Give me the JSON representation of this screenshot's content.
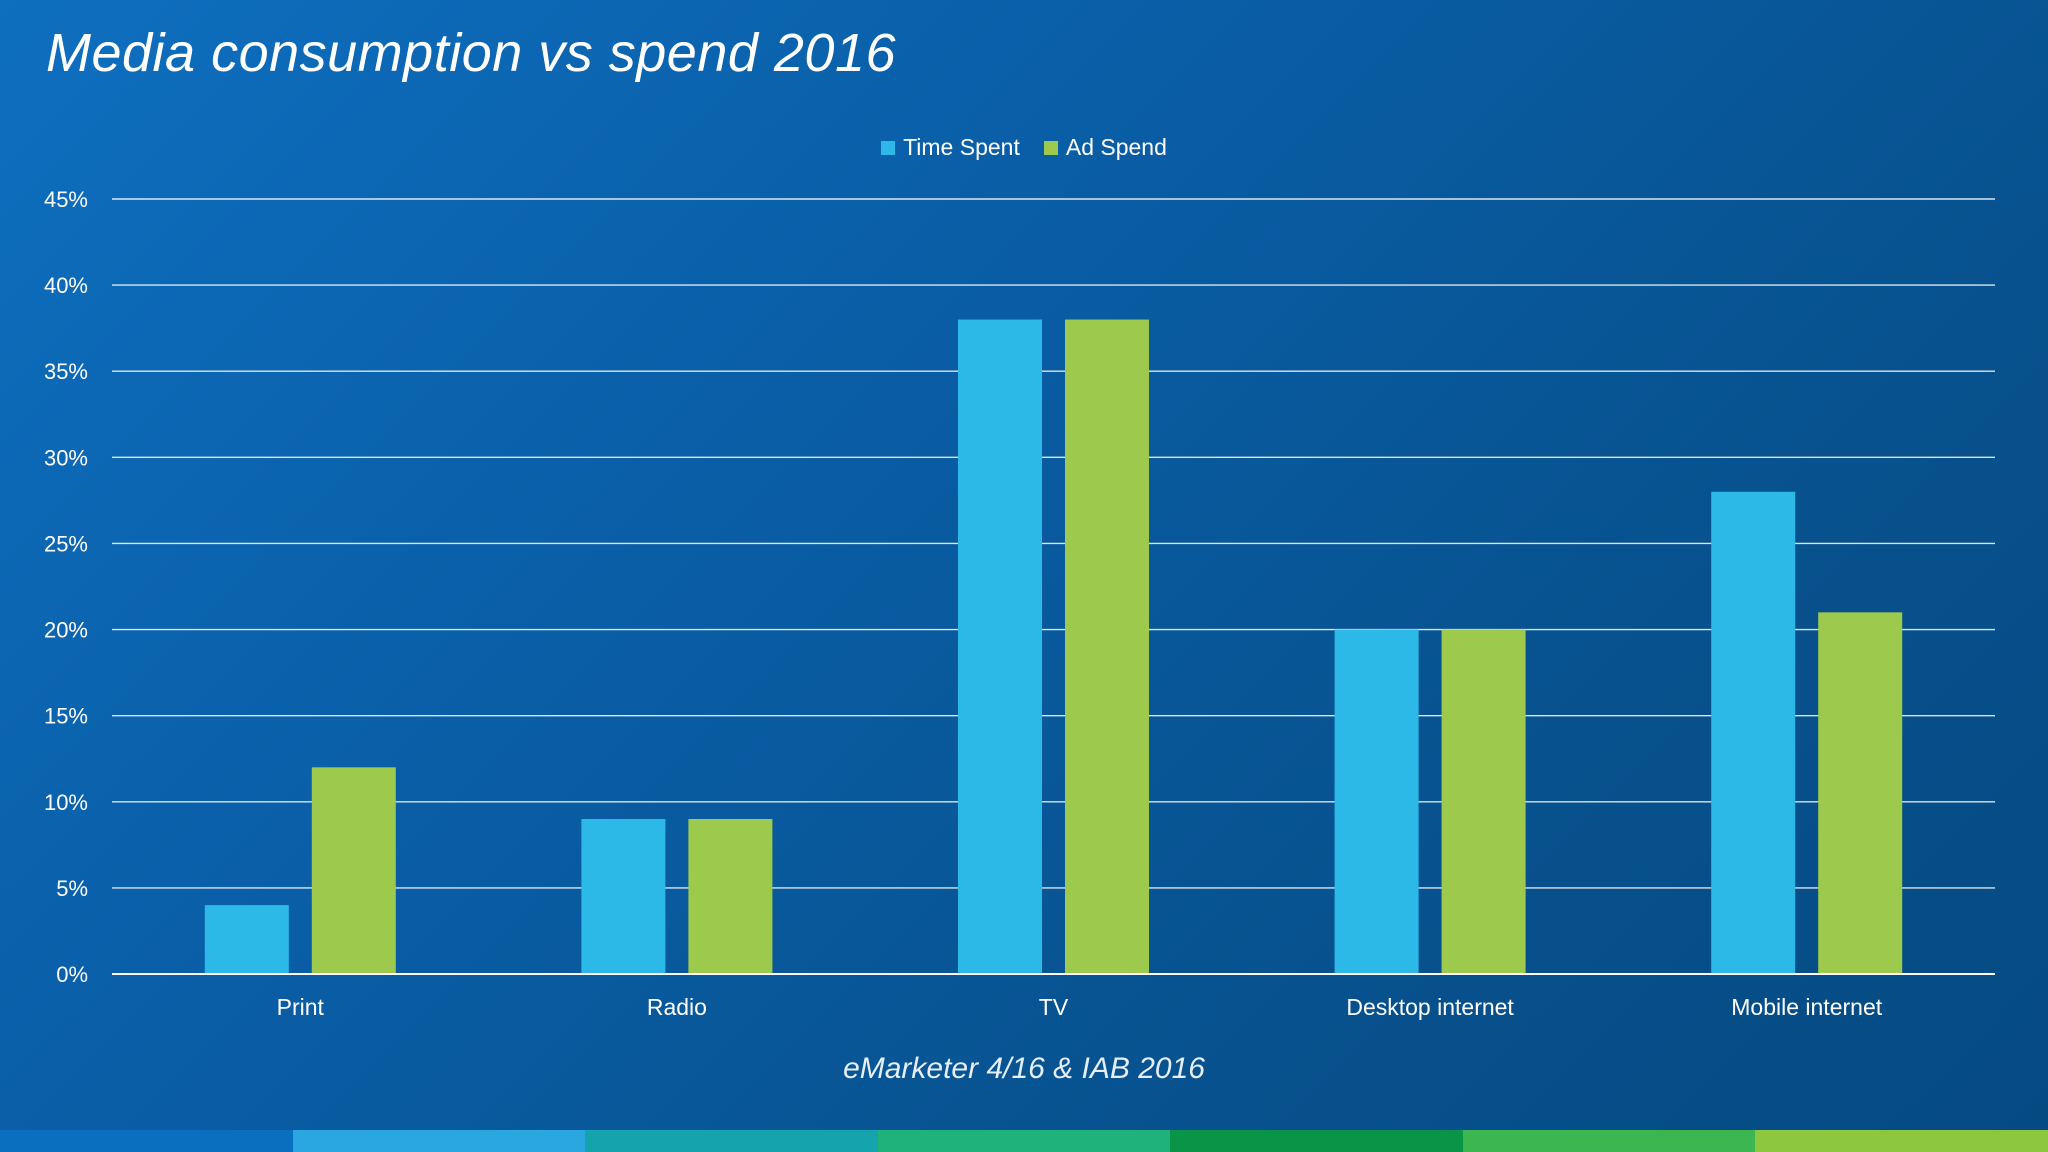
{
  "title": "Media consumption vs spend 2016",
  "source": "eMarketer 4/16 & IAB 2016",
  "colors": {
    "time_spent": "#2cb9e8",
    "ad_spend": "#9dca4c",
    "gridline": "#ffffff"
  },
  "footer_colors": [
    "#0a6fbf",
    "#2aa7e1",
    "#15a3ad",
    "#1fb37b",
    "#0a9447",
    "#3cb650",
    "#8dc63f"
  ],
  "chart_data": {
    "type": "bar",
    "title": "Media consumption vs spend 2016",
    "categories": [
      "Print",
      "Radio",
      "TV",
      "Desktop internet",
      "Mobile internet"
    ],
    "series": [
      {
        "name": "Time Spent",
        "values": [
          4,
          9,
          38,
          20,
          28
        ]
      },
      {
        "name": "Ad Spend",
        "values": [
          12,
          9,
          38,
          20,
          21
        ]
      }
    ],
    "ylim": [
      0,
      45
    ],
    "yticks": [
      0,
      5,
      10,
      15,
      20,
      25,
      30,
      35,
      40,
      45
    ],
    "ytick_labels": [
      "0%",
      "5%",
      "10%",
      "15%",
      "20%",
      "25%",
      "30%",
      "35%",
      "40%",
      "45%"
    ],
    "xlabel": "",
    "ylabel": "",
    "grid": true,
    "legend_position": "top-center"
  }
}
